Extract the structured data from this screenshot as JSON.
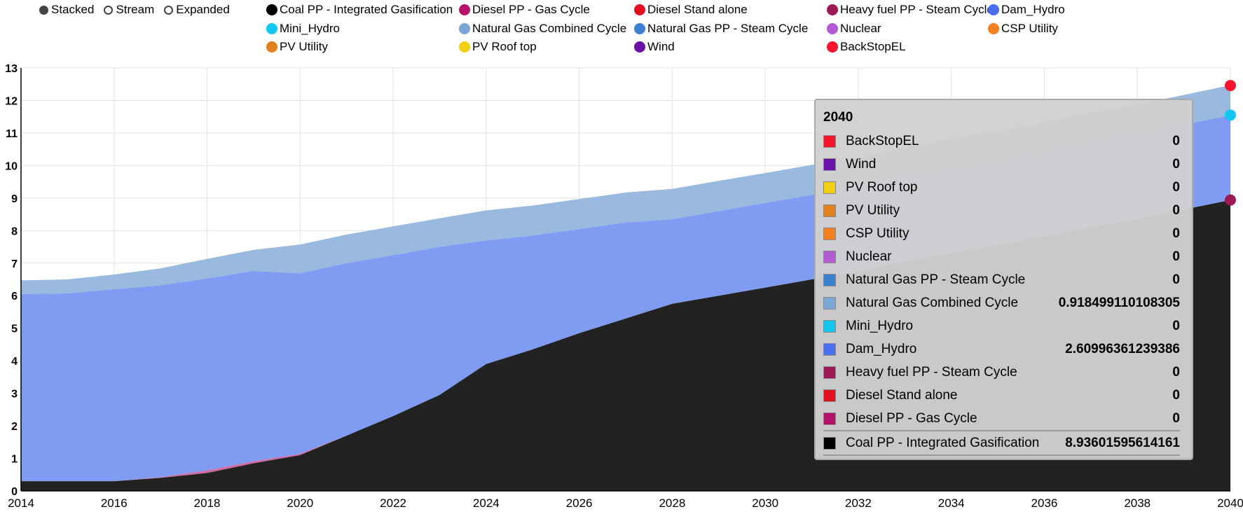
{
  "controls": [
    {
      "label": "Stacked",
      "selected": true
    },
    {
      "label": "Stream",
      "selected": false
    },
    {
      "label": "Expanded",
      "selected": false
    }
  ],
  "legend": [
    {
      "label": "Coal PP - Integrated Gasification",
      "color": "#000000"
    },
    {
      "label": "Diesel PP - Gas Cycle",
      "color": "#b5126a"
    },
    {
      "label": "Diesel Stand alone",
      "color": "#e0101f"
    },
    {
      "label": "Heavy fuel PP - Steam Cycle",
      "color": "#9c1a55"
    },
    {
      "label": "Dam_Hydro",
      "color": "#4a6ef0"
    },
    {
      "label": "Mini_Hydro",
      "color": "#13c8f0"
    },
    {
      "label": "Natural Gas Combined Cycle",
      "color": "#7aa6d6"
    },
    {
      "label": "Natural Gas PP - Steam Cycle",
      "color": "#3a7fd0"
    },
    {
      "label": "Nuclear",
      "color": "#b55ad6"
    },
    {
      "label": "CSP Utility",
      "color": "#f5801f"
    },
    {
      "label": "PV Utility",
      "color": "#e0801f"
    },
    {
      "label": "PV Roof top",
      "color": "#f0d010"
    },
    {
      "label": "Wind",
      "color": "#6a12a8"
    },
    {
      "label": "BackStopEL",
      "color": "#f5152e"
    }
  ],
  "chart_data": {
    "type": "area",
    "stacked": true,
    "x": [
      2014,
      2015,
      2016,
      2017,
      2018,
      2019,
      2020,
      2021,
      2022,
      2023,
      2024,
      2025,
      2026,
      2027,
      2028,
      2029,
      2030,
      2031,
      2032,
      2033,
      2034,
      2035,
      2036,
      2037,
      2038,
      2039,
      2040
    ],
    "xticks": [
      "2014",
      "2016",
      "2018",
      "2020",
      "2022",
      "2024",
      "2026",
      "2028",
      "2030",
      "2032",
      "2034",
      "2036",
      "2038",
      "2040"
    ],
    "yticks": [
      "0",
      "1",
      "2",
      "3",
      "4",
      "5",
      "6",
      "7",
      "8",
      "9",
      "10",
      "11",
      "12",
      "13"
    ],
    "ylim": [
      0,
      13
    ],
    "series": [
      {
        "name": "Coal PP - Integrated Gasification",
        "color": "#222222",
        "values": [
          0.3,
          0.3,
          0.3,
          0.4,
          0.55,
          0.85,
          1.1,
          1.7,
          2.3,
          2.95,
          3.9,
          4.35,
          4.85,
          5.3,
          5.75,
          6.0,
          6.25,
          6.5,
          6.75,
          7.05,
          7.3,
          7.55,
          7.8,
          8.1,
          8.35,
          8.65,
          8.94
        ]
      },
      {
        "name": "Diesel PP - Gas Cycle",
        "color": "#d06aa0",
        "values": [
          0,
          0,
          0,
          0.02,
          0.08,
          0.06,
          0.04,
          0,
          0,
          0,
          0,
          0,
          0,
          0,
          0,
          0,
          0,
          0,
          0,
          0,
          0,
          0,
          0,
          0,
          0,
          0,
          0
        ]
      },
      {
        "name": "Diesel Stand alone",
        "color": "#e0101f",
        "values": [
          0,
          0,
          0,
          0,
          0,
          0,
          0,
          0,
          0,
          0,
          0,
          0,
          0,
          0,
          0,
          0,
          0,
          0,
          0,
          0,
          0,
          0,
          0,
          0,
          0,
          0,
          0
        ]
      },
      {
        "name": "Heavy fuel PP - Steam Cycle",
        "color": "#9c1a55",
        "values": [
          0,
          0,
          0,
          0,
          0,
          0,
          0,
          0,
          0,
          0,
          0,
          0,
          0,
          0,
          0,
          0,
          0,
          0,
          0,
          0,
          0,
          0,
          0,
          0,
          0,
          0,
          0
        ]
      },
      {
        "name": "Dam_Hydro",
        "color": "#7f9cf2",
        "values": [
          5.75,
          5.77,
          5.9,
          5.9,
          5.9,
          5.85,
          5.55,
          5.3,
          4.95,
          4.55,
          3.8,
          3.5,
          3.2,
          2.95,
          2.6,
          2.6,
          2.6,
          2.6,
          2.6,
          2.6,
          2.6,
          2.6,
          2.6,
          2.6,
          2.6,
          2.6,
          2.61
        ]
      },
      {
        "name": "Mini_Hydro",
        "color": "#13c8f0",
        "values": [
          0,
          0,
          0,
          0,
          0,
          0,
          0,
          0,
          0,
          0,
          0,
          0,
          0,
          0,
          0,
          0,
          0,
          0,
          0,
          0,
          0,
          0,
          0,
          0,
          0,
          0,
          0
        ]
      },
      {
        "name": "Natural Gas Combined Cycle",
        "color": "#99b9de",
        "values": [
          0.42,
          0.43,
          0.45,
          0.52,
          0.6,
          0.65,
          0.88,
          0.88,
          0.88,
          0.88,
          0.92,
          0.92,
          0.92,
          0.92,
          0.93,
          0.93,
          0.92,
          0.92,
          0.92,
          0.92,
          0.92,
          0.92,
          0.92,
          0.92,
          0.92,
          0.92,
          0.92
        ]
      },
      {
        "name": "Natural Gas PP - Steam Cycle",
        "color": "#3a7fd0",
        "values": [
          0,
          0,
          0,
          0,
          0,
          0,
          0,
          0,
          0,
          0,
          0,
          0,
          0,
          0,
          0,
          0,
          0,
          0,
          0,
          0,
          0,
          0,
          0,
          0,
          0,
          0,
          0
        ]
      },
      {
        "name": "Nuclear",
        "color": "#b55ad6",
        "values": [
          0,
          0,
          0,
          0,
          0,
          0,
          0,
          0,
          0,
          0,
          0,
          0,
          0,
          0,
          0,
          0,
          0,
          0,
          0,
          0,
          0,
          0,
          0,
          0,
          0,
          0,
          0
        ]
      },
      {
        "name": "CSP Utility",
        "color": "#f5801f",
        "values": [
          0,
          0,
          0,
          0,
          0,
          0,
          0,
          0,
          0,
          0,
          0,
          0,
          0,
          0,
          0,
          0,
          0,
          0,
          0,
          0,
          0,
          0,
          0,
          0,
          0,
          0,
          0
        ]
      },
      {
        "name": "PV Utility",
        "color": "#e0801f",
        "values": [
          0,
          0,
          0,
          0,
          0,
          0,
          0,
          0,
          0,
          0,
          0,
          0,
          0,
          0,
          0,
          0,
          0,
          0,
          0,
          0,
          0,
          0,
          0,
          0,
          0,
          0,
          0
        ]
      },
      {
        "name": "PV Roof top",
        "color": "#f0d010",
        "values": [
          0,
          0,
          0,
          0,
          0,
          0,
          0,
          0,
          0,
          0,
          0,
          0,
          0,
          0,
          0,
          0,
          0,
          0,
          0,
          0,
          0,
          0,
          0,
          0,
          0,
          0,
          0
        ]
      },
      {
        "name": "Wind",
        "color": "#6a12a8",
        "values": [
          0,
          0,
          0,
          0,
          0,
          0,
          0,
          0,
          0,
          0,
          0,
          0,
          0,
          0,
          0,
          0,
          0,
          0,
          0,
          0,
          0,
          0,
          0,
          0,
          0,
          0,
          0
        ]
      },
      {
        "name": "BackStopEL",
        "color": "#f5152e",
        "values": [
          0,
          0,
          0,
          0,
          0,
          0,
          0,
          0,
          0,
          0,
          0,
          0,
          0,
          0,
          0,
          0,
          0,
          0,
          0,
          0,
          0,
          0,
          0,
          0,
          0,
          0,
          0
        ]
      }
    ],
    "hover_markers": [
      {
        "series": "BackStopEL",
        "color": "#f5152e",
        "value": 12.46
      },
      {
        "series": "Mini_Hydro",
        "color": "#13c8f0",
        "value": 11.55
      },
      {
        "series": "Heavy fuel PP - Steam Cycle",
        "color": "#9c1a55",
        "value": 8.94
      }
    ]
  },
  "tooltip": {
    "year": "2040",
    "rows": [
      {
        "name": "BackStopEL",
        "value": "0",
        "color": "#f5152e"
      },
      {
        "name": "Wind",
        "value": "0",
        "color": "#6a12a8"
      },
      {
        "name": "PV Roof top",
        "value": "0",
        "color": "#f0d010"
      },
      {
        "name": "PV Utility",
        "value": "0",
        "color": "#e0801f"
      },
      {
        "name": "CSP Utility",
        "value": "0",
        "color": "#f5801f"
      },
      {
        "name": "Nuclear",
        "value": "0",
        "color": "#b55ad6"
      },
      {
        "name": "Natural Gas PP - Steam Cycle",
        "value": "0",
        "color": "#3a7fd0"
      },
      {
        "name": "Natural Gas Combined Cycle",
        "value": "0.918499110108305",
        "color": "#7aa6d6"
      },
      {
        "name": "Mini_Hydro",
        "value": "0",
        "color": "#13c8f0"
      },
      {
        "name": "Dam_Hydro",
        "value": "2.60996361239386",
        "color": "#4a6ef0"
      },
      {
        "name": "Heavy fuel PP - Steam Cycle",
        "value": "0",
        "color": "#9c1a55"
      },
      {
        "name": "Diesel Stand alone",
        "value": "0",
        "color": "#e0101f"
      },
      {
        "name": "Diesel PP - Gas Cycle",
        "value": "0",
        "color": "#b5126a"
      },
      {
        "name": "Coal PP - Integrated Gasification",
        "value": "8.93601595614161",
        "color": "#000000"
      }
    ]
  }
}
